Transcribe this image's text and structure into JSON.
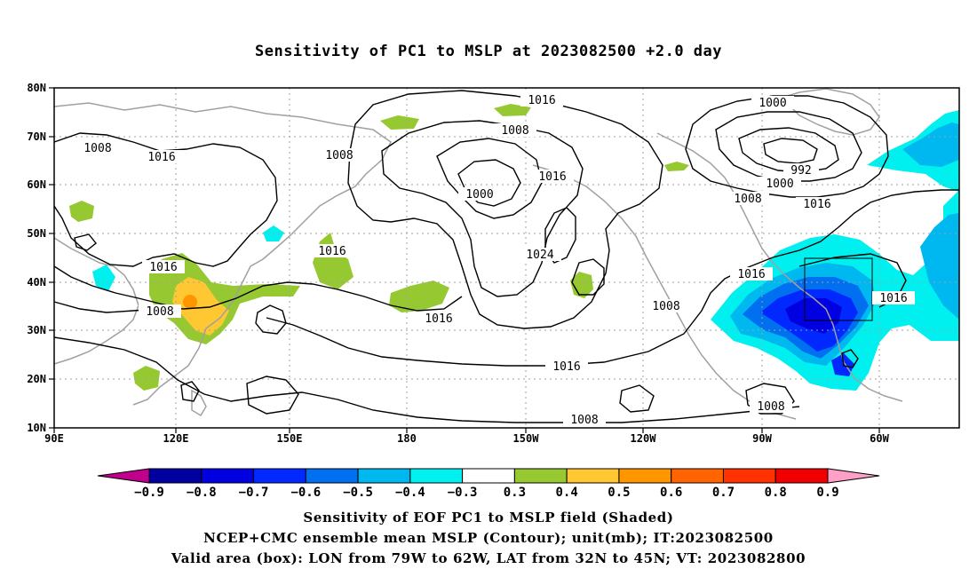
{
  "title": "Sensitivity of PC1 to MSLP at 2023082500 +2.0 day",
  "map": {
    "lon_ticks": [
      "90E",
      "120E",
      "150E",
      "180",
      "150W",
      "120W",
      "90W",
      "60W"
    ],
    "lat_ticks": [
      "80N",
      "70N",
      "60N",
      "50N",
      "40N",
      "30N",
      "20N",
      "10N"
    ],
    "valid_box": {
      "lon_w": "79W",
      "lon_e": "62W",
      "lat_s": "32N",
      "lat_n": "45N"
    },
    "contour_labels": [
      "1016",
      "1000",
      "1008",
      "1008",
      "1016",
      "1008",
      "1016",
      "1000",
      "1016",
      "992",
      "1000",
      "1008",
      "1016",
      "1016",
      "1024",
      "1016",
      "1016",
      "1016",
      "1008",
      "1008",
      "1016",
      "1008",
      "1008"
    ]
  },
  "colorbar": {
    "labels": [
      "-0.9",
      "-0.8",
      "-0.7",
      "-0.6",
      "-0.5",
      "-0.4",
      "-0.3",
      "0.3",
      "0.4",
      "0.5",
      "0.6",
      "0.7",
      "0.8",
      "0.9"
    ],
    "colors": [
      "#0000a0",
      "#0000e0",
      "#0028ff",
      "#0070f0",
      "#00b8f0",
      "#00f0f0",
      "#ffffff",
      "#96c832",
      "#ffc832",
      "#ff9600",
      "#ff6400",
      "#ff3200",
      "#f00000"
    ],
    "low_arrow_color": "#c0008c",
    "high_arrow_color": "#ffa0c8"
  },
  "caption": {
    "line1": "Sensitivity of EOF PC1 to MSLP field (Shaded)",
    "line2": "NCEP+CMC ensemble mean MSLP (Contour); unit(mb); IT:2023082500",
    "line3": "Valid area (box): LON from 79W to 62W, LAT from 32N to 45N; VT: 2023082800"
  }
}
